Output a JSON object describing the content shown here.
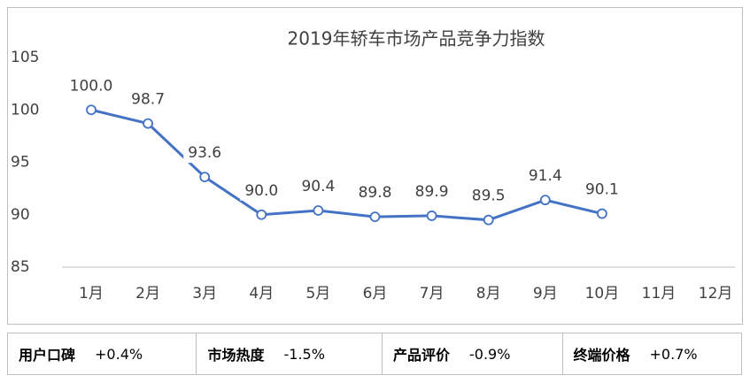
{
  "chart_data": {
    "type": "line",
    "title": "2019年轿车市场产品竞争力指数",
    "categories": [
      "1月",
      "2月",
      "3月",
      "4月",
      "5月",
      "6月",
      "7月",
      "8月",
      "9月",
      "10月",
      "11月",
      "12月"
    ],
    "series": [
      {
        "name": "产品竞争力指数",
        "color": "#4472c4",
        "values": [
          100.0,
          98.7,
          93.6,
          90.0,
          90.4,
          89.8,
          89.9,
          89.5,
          91.4,
          90.1,
          null,
          null
        ],
        "value_labels": [
          "100.0",
          "98.7",
          "93.6",
          "90.0",
          "90.4",
          "89.8",
          "89.9",
          "89.5",
          "91.4",
          "90.1",
          null,
          null
        ]
      }
    ],
    "ylim": [
      85,
      105
    ],
    "yticks": [
      85,
      90,
      95,
      100,
      105
    ],
    "grid": false
  },
  "indicators": [
    {
      "label": "用户口碑",
      "value": "+0.4%"
    },
    {
      "label": "市场热度",
      "value": "-1.5%"
    },
    {
      "label": "产品评价",
      "value": "-0.9%"
    },
    {
      "label": "终端价格",
      "value": "+0.7%"
    }
  ]
}
